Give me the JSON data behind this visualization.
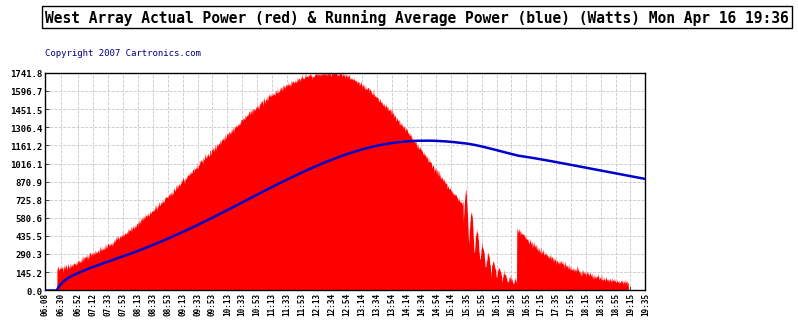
{
  "title": "West Array Actual Power (red) & Running Average Power (blue) (Watts) Mon Apr 16 19:36",
  "copyright": "Copyright 2007 Cartronics.com",
  "y_ticks": [
    0.0,
    145.2,
    290.3,
    435.5,
    580.6,
    725.8,
    870.9,
    1016.1,
    1161.2,
    1306.4,
    1451.5,
    1596.7,
    1741.8
  ],
  "y_max": 1741.8,
  "x_labels": [
    "06:08",
    "06:30",
    "06:52",
    "07:12",
    "07:33",
    "07:53",
    "08:13",
    "08:33",
    "08:53",
    "09:13",
    "09:33",
    "09:53",
    "10:13",
    "10:33",
    "10:53",
    "11:13",
    "11:33",
    "11:53",
    "12:13",
    "12:34",
    "12:54",
    "13:14",
    "13:34",
    "13:54",
    "14:14",
    "14:34",
    "14:54",
    "15:14",
    "15:35",
    "15:55",
    "16:15",
    "16:35",
    "16:55",
    "17:15",
    "17:35",
    "17:55",
    "18:15",
    "18:35",
    "18:55",
    "19:15",
    "19:35"
  ],
  "bg_color": "#ffffff",
  "plot_bg_color": "#ffffff",
  "grid_color": "#c8c8c8",
  "actual_color": "#ff0000",
  "avg_color": "#0000cc",
  "title_color": "#000000",
  "title_bg": "#ffffff",
  "copyright_color": "#000080",
  "title_fontsize": 10.5,
  "copyright_fontsize": 6.5,
  "tick_fontsize": 6.5,
  "xtick_fontsize": 5.5
}
